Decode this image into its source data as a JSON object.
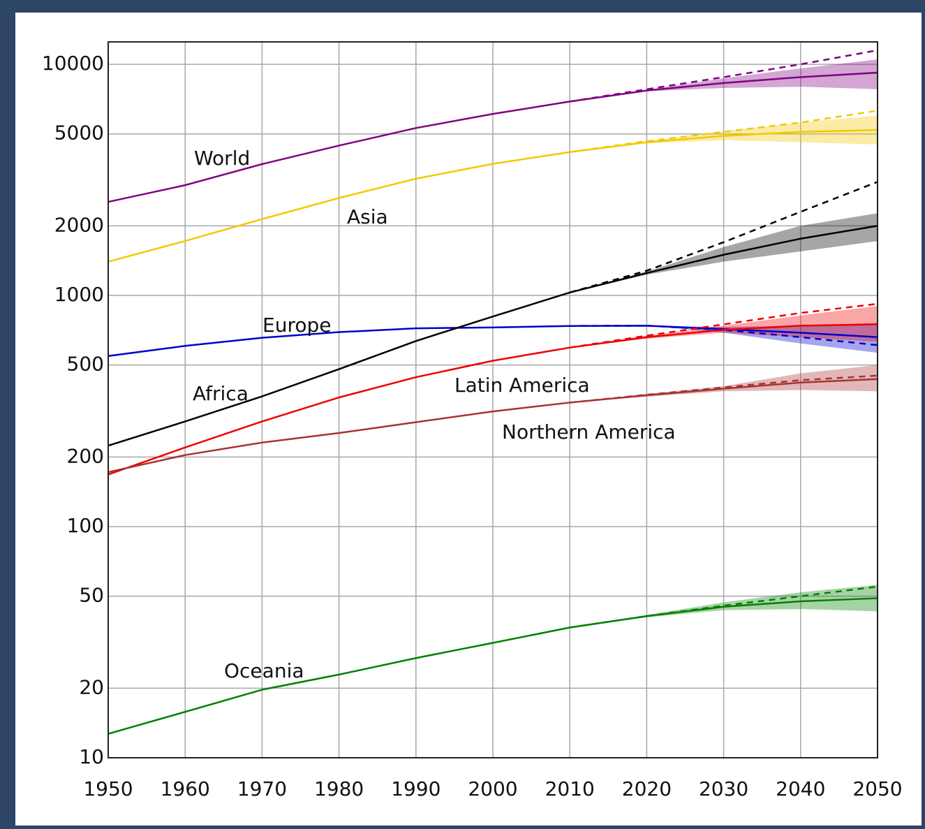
{
  "chart_data": {
    "type": "line",
    "log_y": true,
    "grid": true,
    "x": [
      1950,
      1960,
      1970,
      1980,
      1990,
      2000,
      2010,
      2020,
      2030,
      2040,
      2050
    ],
    "xlim": [
      1950,
      2050
    ],
    "xticks": [
      1950,
      1960,
      1970,
      1980,
      1990,
      2000,
      2010,
      2020,
      2030,
      2040,
      2050
    ],
    "ylim": [
      10,
      12500
    ],
    "yticks": [
      10,
      20,
      50,
      100,
      200,
      500,
      1000,
      2000,
      5000,
      10000
    ],
    "series": [
      {
        "name": "World",
        "color": "#800080",
        "values": [
          2540,
          3000,
          3700,
          4450,
          5300,
          6100,
          6900,
          7700,
          8300,
          8800,
          9200
        ],
        "projection": [
          null,
          null,
          null,
          null,
          null,
          null,
          6900,
          7800,
          8800,
          10000,
          11500
        ],
        "low": [
          null,
          null,
          null,
          null,
          null,
          null,
          6900,
          7650,
          7900,
          8000,
          7800
        ],
        "high": [
          null,
          null,
          null,
          null,
          null,
          null,
          6900,
          7750,
          8700,
          9600,
          10500
        ]
      },
      {
        "name": "Asia",
        "color": "#f2c900",
        "values": [
          1400,
          1720,
          2140,
          2640,
          3200,
          3710,
          4170,
          4600,
          4900,
          5100,
          5200
        ],
        "projection": [
          null,
          null,
          null,
          null,
          null,
          null,
          4170,
          4650,
          5100,
          5600,
          6300
        ],
        "low": [
          null,
          null,
          null,
          null,
          null,
          null,
          4170,
          4550,
          4700,
          4600,
          4500
        ],
        "high": [
          null,
          null,
          null,
          null,
          null,
          null,
          4170,
          4650,
          5150,
          5600,
          6000
        ]
      },
      {
        "name": "Europe",
        "color": "#0000cc",
        "values": [
          547,
          605,
          656,
          694,
          721,
          727,
          738,
          740,
          715,
          690,
          660
        ],
        "projection": [
          null,
          null,
          null,
          null,
          null,
          null,
          738,
          740,
          710,
          660,
          610
        ],
        "low": [
          null,
          null,
          null,
          null,
          null,
          null,
          738,
          740,
          690,
          620,
          565
        ],
        "high": [
          null,
          null,
          null,
          null,
          null,
          null,
          738,
          740,
          730,
          740,
          760
        ]
      },
      {
        "name": "Africa",
        "color": "#000000",
        "values": [
          224,
          285,
          366,
          480,
          635,
          811,
          1030,
          1250,
          1500,
          1760,
          2000
        ],
        "projection": [
          null,
          null,
          null,
          null,
          null,
          null,
          1030,
          1280,
          1700,
          2300,
          3100
        ],
        "low": [
          null,
          null,
          null,
          null,
          null,
          null,
          1030,
          1230,
          1400,
          1550,
          1720
        ],
        "high": [
          null,
          null,
          null,
          null,
          null,
          null,
          1030,
          1270,
          1620,
          2000,
          2270
        ]
      },
      {
        "name": "Latin America",
        "color": "#ee0000",
        "values": [
          168,
          220,
          285,
          362,
          443,
          522,
          595,
          660,
          710,
          740,
          750
        ],
        "projection": [
          null,
          null,
          null,
          null,
          null,
          null,
          595,
          670,
          750,
          840,
          920
        ],
        "low": [
          null,
          null,
          null,
          null,
          null,
          null,
          595,
          650,
          690,
          660,
          630
        ],
        "high": [
          null,
          null,
          null,
          null,
          null,
          null,
          595,
          670,
          740,
          820,
          900
        ]
      },
      {
        "name": "Northern America",
        "color": "#a83232",
        "values": [
          172,
          204,
          231,
          254,
          283,
          315,
          344,
          370,
          395,
          420,
          435
        ],
        "projection": [
          null,
          null,
          null,
          null,
          null,
          null,
          344,
          372,
          400,
          430,
          450
        ],
        "low": [
          null,
          null,
          null,
          null,
          null,
          null,
          344,
          365,
          385,
          390,
          385
        ],
        "high": [
          null,
          null,
          null,
          null,
          null,
          null,
          344,
          375,
          405,
          460,
          500
        ]
      },
      {
        "name": "Oceania",
        "color": "#008000",
        "values": [
          12.7,
          15.8,
          19.7,
          22.9,
          27,
          31.4,
          36.6,
          41,
          45,
          47.5,
          49
        ],
        "projection": [
          null,
          null,
          null,
          null,
          null,
          null,
          36.6,
          41,
          45.5,
          50,
          55
        ],
        "low": [
          null,
          null,
          null,
          null,
          null,
          null,
          36.6,
          40.5,
          43.5,
          44,
          43
        ],
        "high": [
          null,
          null,
          null,
          null,
          null,
          null,
          36.6,
          41.5,
          47,
          52,
          56
        ]
      }
    ]
  }
}
